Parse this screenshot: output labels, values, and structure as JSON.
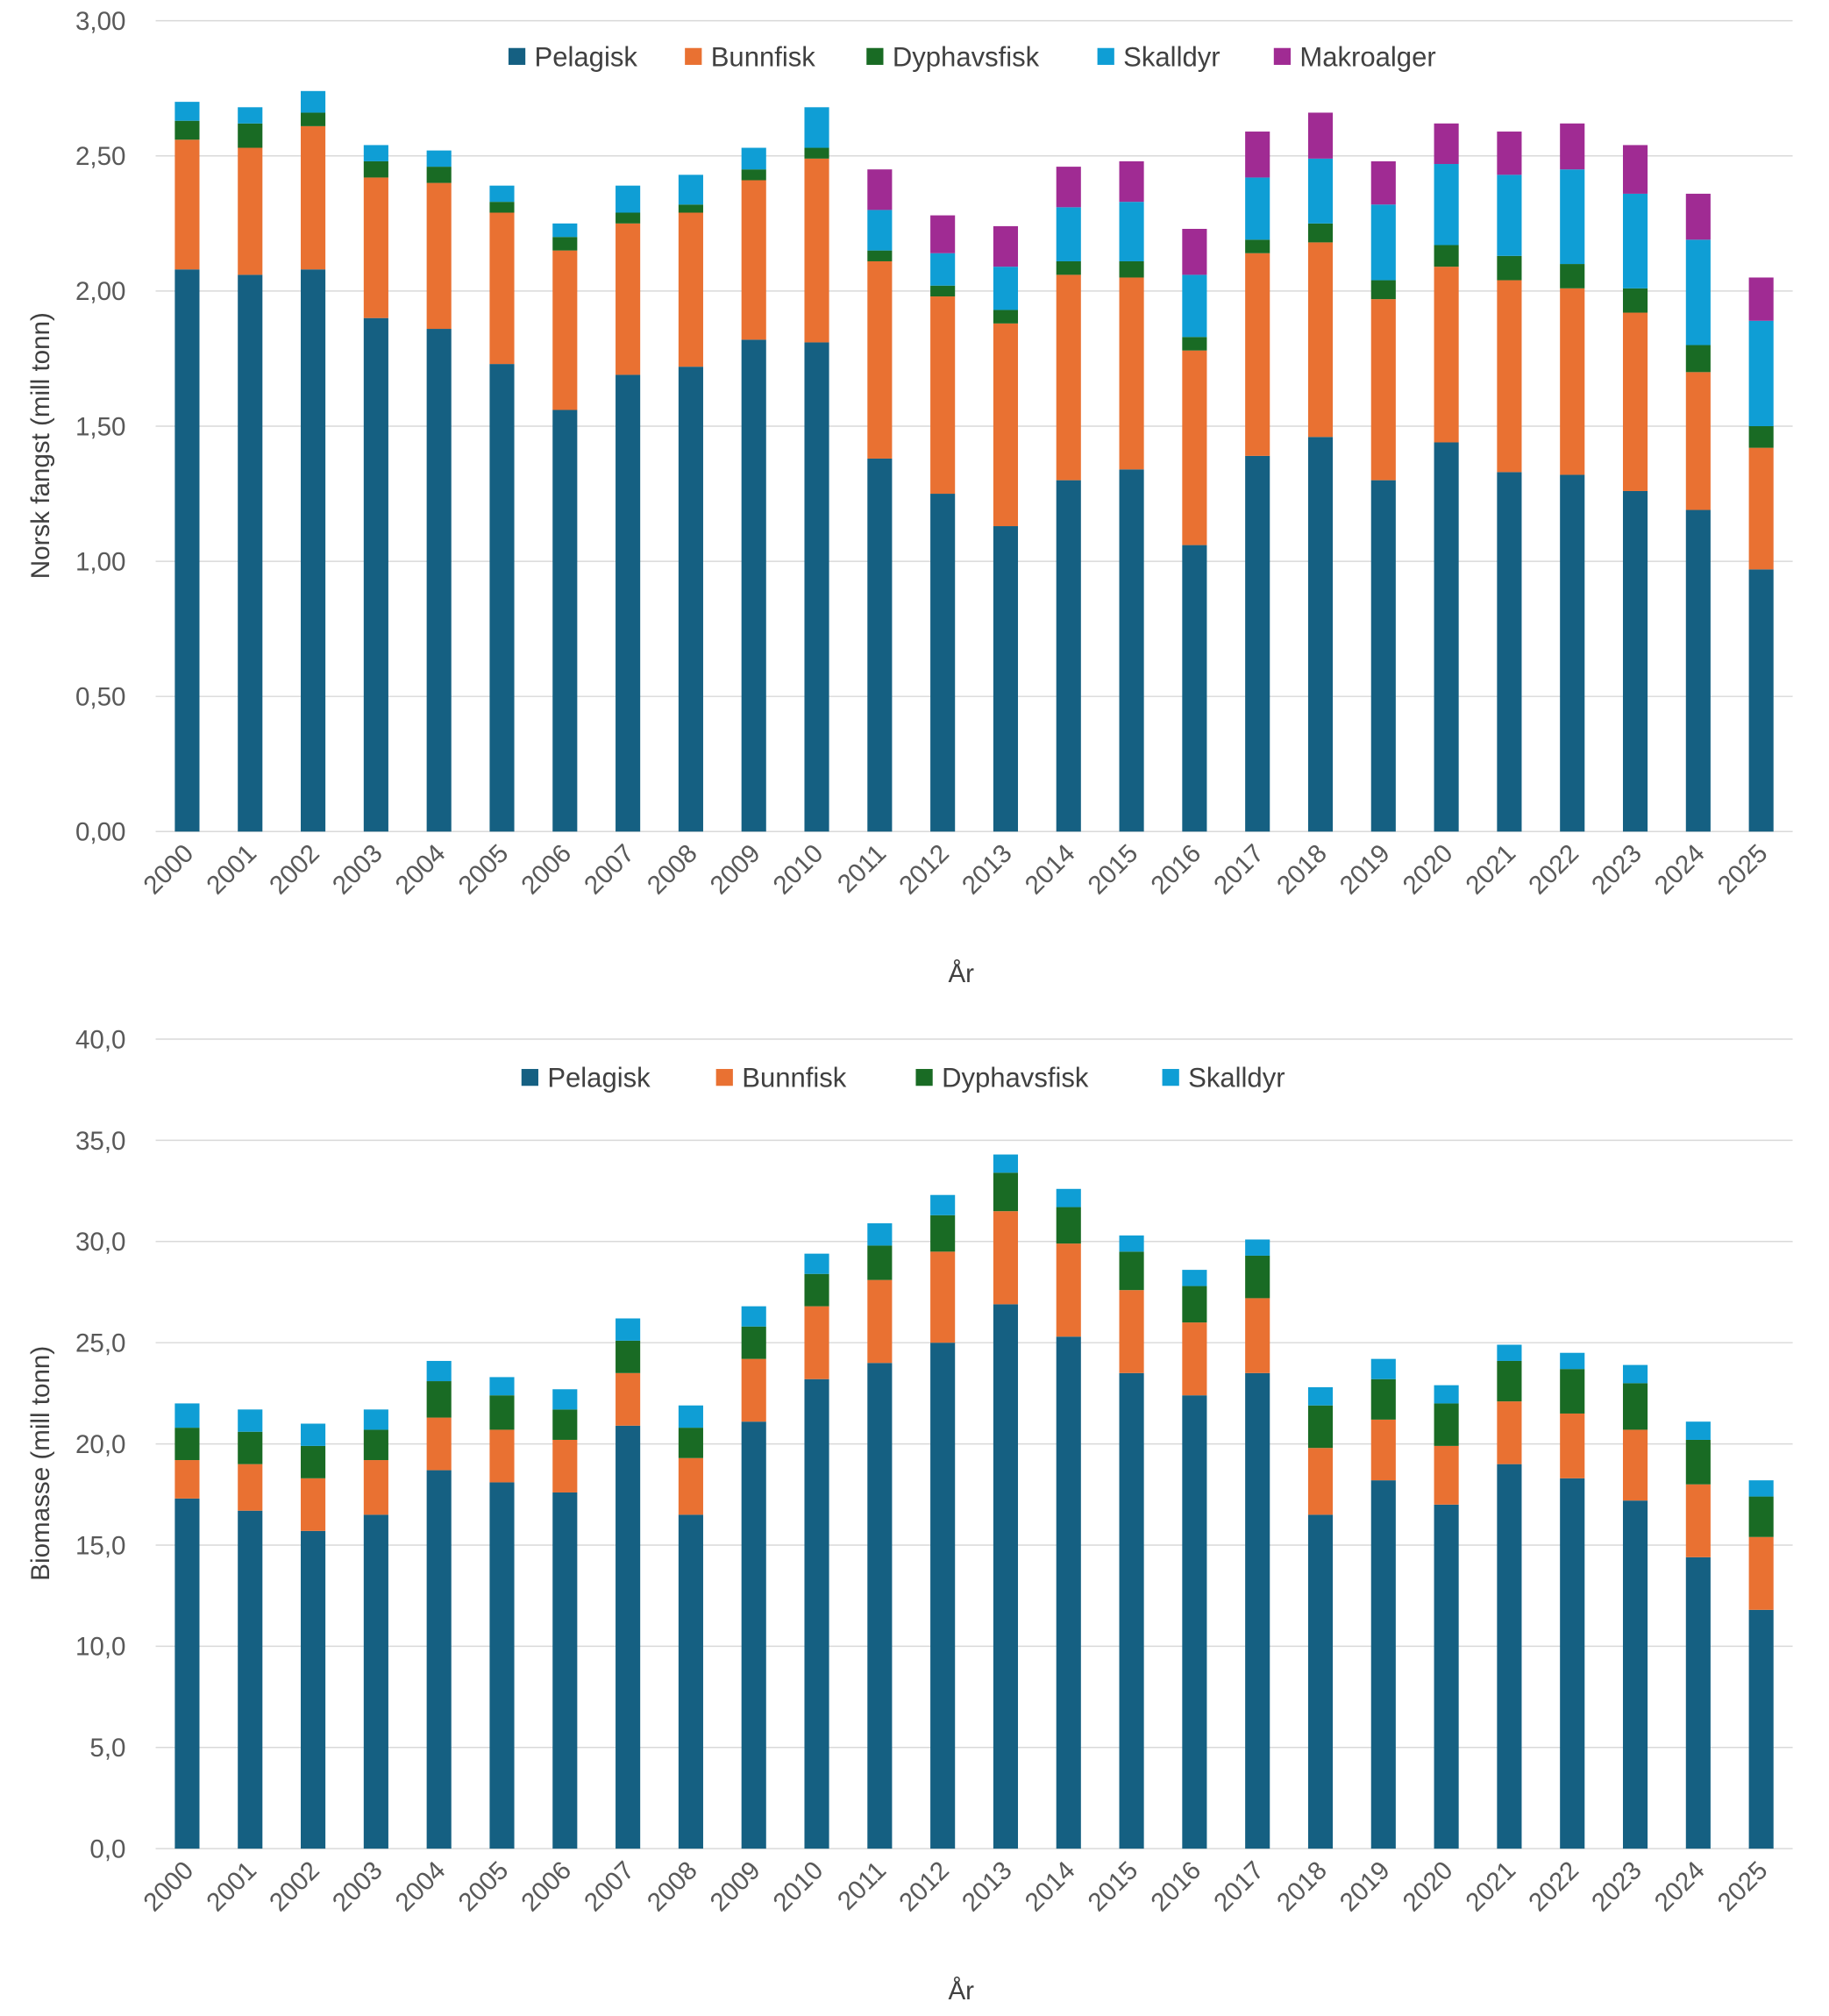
{
  "colors": {
    "Pelagisk": "#156082",
    "Bunnfisk": "#e97132",
    "Dyphavsfisk": "#196b24",
    "Skalldyr": "#0f9ed5",
    "Makroalger": "#a02b93"
  },
  "chart_data": [
    {
      "type": "bar",
      "stacked": true,
      "xlabel": "År",
      "ylabel": "Norsk fangst (mill tonn)",
      "ylim": [
        0,
        3
      ],
      "yticks": [
        "0,00",
        "0,50",
        "1,00",
        "1,50",
        "2,00",
        "2,50",
        "3,00"
      ],
      "grid": true,
      "legend": "top",
      "categories": [
        "2000",
        "2001",
        "2002",
        "2003",
        "2004",
        "2005",
        "2006",
        "2007",
        "2008",
        "2009",
        "2010",
        "2011",
        "2012",
        "2013",
        "2014",
        "2015",
        "2016",
        "2017",
        "2018",
        "2019",
        "2020",
        "2021",
        "2022",
        "2023",
        "2024",
        "2025"
      ],
      "series": [
        {
          "name": "Pelagisk",
          "values": [
            2.08,
            2.06,
            2.08,
            1.9,
            1.86,
            1.73,
            1.56,
            1.69,
            1.72,
            1.82,
            1.81,
            1.38,
            1.25,
            1.13,
            1.3,
            1.34,
            1.06,
            1.39,
            1.46,
            1.3,
            1.44,
            1.33,
            1.32,
            1.26,
            1.19,
            0.97
          ]
        },
        {
          "name": "Bunnfisk",
          "values": [
            0.48,
            0.47,
            0.53,
            0.52,
            0.54,
            0.56,
            0.59,
            0.56,
            0.57,
            0.59,
            0.68,
            0.73,
            0.73,
            0.75,
            0.76,
            0.71,
            0.72,
            0.75,
            0.72,
            0.67,
            0.65,
            0.71,
            0.69,
            0.66,
            0.51,
            0.45
          ]
        },
        {
          "name": "Dyphavsfisk",
          "values": [
            0.07,
            0.09,
            0.05,
            0.06,
            0.06,
            0.04,
            0.05,
            0.04,
            0.03,
            0.04,
            0.04,
            0.04,
            0.04,
            0.05,
            0.05,
            0.06,
            0.05,
            0.05,
            0.07,
            0.07,
            0.08,
            0.09,
            0.09,
            0.09,
            0.1,
            0.08
          ]
        },
        {
          "name": "Skalldyr",
          "values": [
            0.07,
            0.06,
            0.08,
            0.06,
            0.06,
            0.06,
            0.05,
            0.1,
            0.11,
            0.08,
            0.15,
            0.15,
            0.12,
            0.16,
            0.2,
            0.22,
            0.23,
            0.23,
            0.24,
            0.28,
            0.3,
            0.3,
            0.35,
            0.35,
            0.39,
            0.39
          ]
        },
        {
          "name": "Makroalger",
          "values": [
            0,
            0,
            0,
            0,
            0,
            0,
            0,
            0,
            0,
            0,
            0,
            0.15,
            0.14,
            0.15,
            0.15,
            0.15,
            0.17,
            0.17,
            0.17,
            0.16,
            0.15,
            0.16,
            0.17,
            0.18,
            0.17,
            0.16
          ]
        }
      ]
    },
    {
      "type": "bar",
      "stacked": true,
      "xlabel": "År",
      "ylabel": "Biomasse (mill tonn)",
      "ylim": [
        0,
        40
      ],
      "yticks": [
        "0,0",
        "5,0",
        "10,0",
        "15,0",
        "20,0",
        "25,0",
        "30,0",
        "35,0",
        "40,0"
      ],
      "grid": true,
      "legend": "top",
      "categories": [
        "2000",
        "2001",
        "2002",
        "2003",
        "2004",
        "2005",
        "2006",
        "2007",
        "2008",
        "2009",
        "2010",
        "2011",
        "2012",
        "2013",
        "2014",
        "2015",
        "2016",
        "2017",
        "2018",
        "2019",
        "2020",
        "2021",
        "2022",
        "2023",
        "2024",
        "2025"
      ],
      "series": [
        {
          "name": "Pelagisk",
          "values": [
            17.3,
            16.7,
            15.7,
            16.5,
            18.7,
            18.1,
            17.6,
            20.9,
            16.5,
            21.1,
            23.2,
            24.0,
            25.0,
            26.9,
            25.3,
            23.5,
            22.4,
            23.5,
            16.5,
            18.2,
            17.0,
            19.0,
            18.3,
            17.2,
            14.4,
            11.8
          ]
        },
        {
          "name": "Bunnfisk",
          "values": [
            1.9,
            2.3,
            2.6,
            2.7,
            2.6,
            2.6,
            2.6,
            2.6,
            2.8,
            3.1,
            3.6,
            4.1,
            4.5,
            4.6,
            4.6,
            4.1,
            3.6,
            3.7,
            3.3,
            3.0,
            2.9,
            3.1,
            3.2,
            3.5,
            3.6,
            3.6
          ]
        },
        {
          "name": "Dyphavsfisk",
          "values": [
            1.6,
            1.6,
            1.6,
            1.5,
            1.8,
            1.7,
            1.5,
            1.6,
            1.5,
            1.6,
            1.6,
            1.7,
            1.8,
            1.9,
            1.8,
            1.9,
            1.8,
            2.1,
            2.1,
            2.0,
            2.1,
            2.0,
            2.2,
            2.3,
            2.2,
            2.0
          ]
        },
        {
          "name": "Skalldyr",
          "values": [
            1.2,
            1.1,
            1.1,
            1.0,
            1.0,
            0.9,
            1.0,
            1.1,
            1.1,
            1.0,
            1.0,
            1.1,
            1.0,
            0.9,
            0.9,
            0.8,
            0.8,
            0.8,
            0.9,
            1.0,
            0.9,
            0.8,
            0.8,
            0.9,
            0.9,
            0.8
          ]
        }
      ]
    }
  ]
}
